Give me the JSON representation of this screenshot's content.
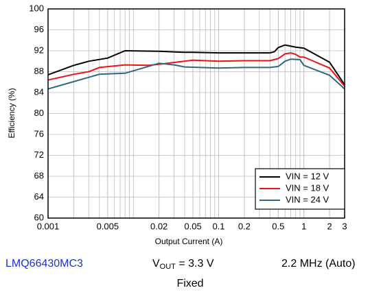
{
  "chart_data": {
    "type": "line",
    "xlabel": "Output Current (A)",
    "ylabel": "Efficiency (%)",
    "xscale": "log",
    "grid": true,
    "legend": "lower right",
    "xlim": [
      0.001,
      3
    ],
    "xticks": [
      0.001,
      0.005,
      0.02,
      0.05,
      0.1,
      0.2,
      0.5,
      1,
      2,
      3
    ],
    "ylim": [
      60,
      100
    ],
    "yticks": [
      60,
      64,
      68,
      72,
      76,
      80,
      84,
      88,
      92,
      96,
      100
    ],
    "series": [
      {
        "name": "VIN = 12 V",
        "color": "#000000",
        "x": [
          0.001,
          0.002,
          0.003,
          0.005,
          0.008,
          0.02,
          0.04,
          0.05,
          0.1,
          0.2,
          0.4,
          0.45,
          0.5,
          0.6,
          0.8,
          1,
          2,
          3
        ],
        "values": [
          87.4,
          89.2,
          90,
          90.6,
          92,
          91.9,
          91.7,
          91.7,
          91.6,
          91.6,
          91.6,
          91.8,
          92.6,
          93.1,
          92.7,
          92.5,
          89.8,
          85.5
        ]
      },
      {
        "name": "VIN = 18 V",
        "color": "#ee1111",
        "x": [
          0.001,
          0.002,
          0.003,
          0.004,
          0.008,
          0.015,
          0.02,
          0.05,
          0.1,
          0.2,
          0.4,
          0.5,
          0.6,
          0.7,
          0.8,
          0.9,
          1,
          2,
          3
        ],
        "values": [
          86.4,
          87.5,
          88,
          88.8,
          89.3,
          89.2,
          89.4,
          90.2,
          90,
          90.1,
          90.1,
          90.5,
          91.4,
          91.6,
          91.3,
          90.8,
          90.8,
          88.7,
          85.2
        ]
      },
      {
        "name": "VIN = 24 V",
        "color": "#336680",
        "x": [
          0.001,
          0.002,
          0.004,
          0.008,
          0.02,
          0.03,
          0.04,
          0.1,
          0.2,
          0.4,
          0.5,
          0.6,
          0.7,
          0.9,
          1,
          2,
          3
        ],
        "values": [
          84.7,
          86.1,
          87.5,
          87.7,
          89.6,
          89.3,
          88.9,
          88.7,
          88.8,
          88.8,
          89,
          90,
          90.4,
          90.3,
          89.2,
          87.3,
          84.7
        ]
      }
    ]
  },
  "footer": {
    "device": "LMQ66430MC3",
    "vout": {
      "base": "V",
      "sub": "OUT",
      "rest": " = 3.3 V"
    },
    "freq": "2.2 MHz (Auto)",
    "mode": "Fixed"
  }
}
